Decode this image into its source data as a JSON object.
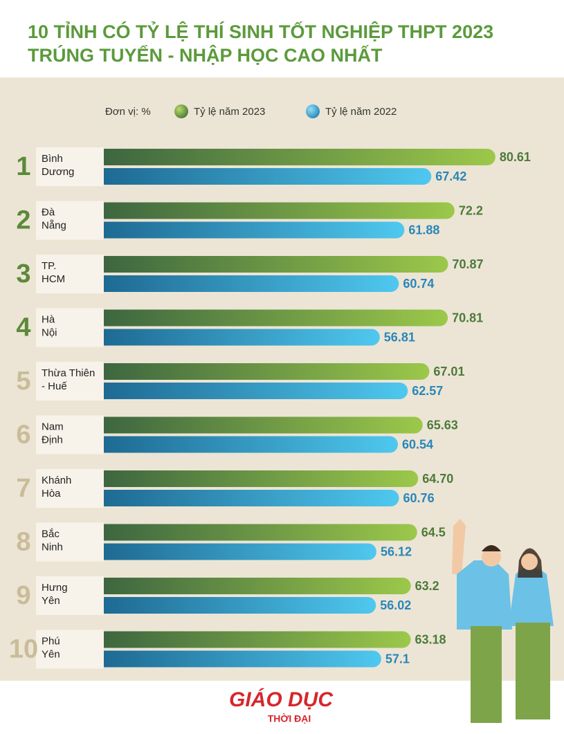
{
  "chart_data": {
    "type": "bar",
    "orientation": "horizontal",
    "title": [
      "10 TỈNH CÓ TỶ LỆ THÍ SINH TỐT NGHIỆP THPT 2023",
      "TRÚNG TUYỂN - NHẬP HỌC CAO NHẤT"
    ],
    "unit_label": "Đơn vị: %",
    "ranks": [
      "1",
      "2",
      "3",
      "4",
      "5",
      "6",
      "7",
      "8",
      "9",
      "10"
    ],
    "categories": [
      [
        "Bình",
        "Dương"
      ],
      [
        "Đà",
        "Nẵng"
      ],
      [
        "TP.",
        "HCM"
      ],
      [
        "Hà",
        "Nội"
      ],
      [
        "Thừa Thiên",
        "- Huế"
      ],
      [
        "Nam",
        "Định"
      ],
      [
        "Khánh",
        "Hòa"
      ],
      [
        "Bắc",
        "Ninh"
      ],
      [
        "Hưng",
        "Yên"
      ],
      [
        "Phú",
        "Yên"
      ]
    ],
    "series": [
      {
        "name": "Tỷ lệ năm 2023",
        "color": "#9cc84a",
        "label_color": "#4d7a3a",
        "values": [
          80.61,
          72.2,
          70.87,
          70.81,
          67.01,
          65.63,
          64.7,
          64.5,
          63.2,
          63.18
        ],
        "value_labels": [
          "80.61",
          "72.2",
          "70.87",
          "70.81",
          "67.01",
          "65.63",
          "64.70",
          "64.5",
          "63.2",
          "63.18"
        ]
      },
      {
        "name": "Tỷ lệ năm 2022",
        "color": "#4fc8ef",
        "label_color": "#2a86b8",
        "values": [
          67.42,
          61.88,
          60.74,
          56.81,
          62.57,
          60.54,
          60.76,
          56.12,
          56.02,
          57.1
        ],
        "value_labels": [
          "67.42",
          "61.88",
          "60.74",
          "56.81",
          "62.57",
          "60.54",
          "60.76",
          "56.12",
          "56.02",
          "57.1"
        ]
      }
    ]
  },
  "footer": {
    "logo_top": "GIÁO DỤC",
    "logo_bottom": "THỜI ĐẠI"
  }
}
